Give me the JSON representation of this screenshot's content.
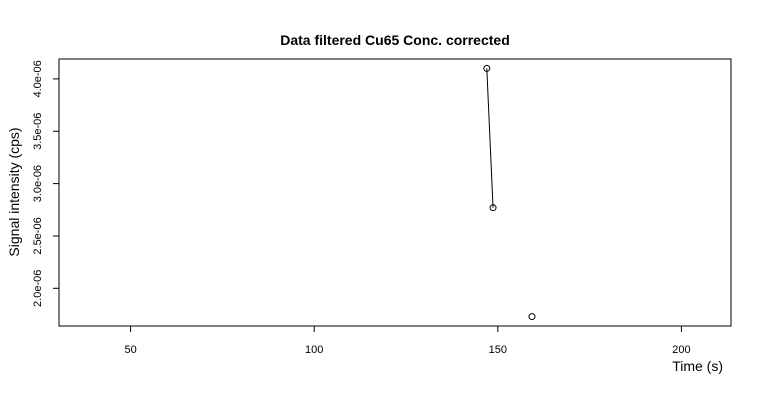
{
  "chart_data": {
    "type": "line",
    "title": "Data filtered Cu65 Conc. corrected",
    "xlabel": "Time (s)",
    "ylabel": "Signal intensity (cps)",
    "xlim": [
      30.5,
      213.5
    ],
    "ylim": [
      1.64e-06,
      4.19e-06
    ],
    "x_ticks": [
      50,
      100,
      150,
      200
    ],
    "x_tick_labels": [
      "50",
      "100",
      "150",
      "200"
    ],
    "y_ticks": [
      2e-06,
      2.5e-06,
      3e-06,
      3.5e-06,
      4e-06
    ],
    "y_tick_labels": [
      "2.0e-06",
      "2.5e-06",
      "3.0e-06",
      "3.5e-06",
      "4.0e-06"
    ],
    "grid": false,
    "series": [
      {
        "name": "Cu65",
        "points": [
          {
            "x": 147.0,
            "y": 4.1e-06
          },
          {
            "x": 148.7,
            "y": 2.77e-06
          },
          {
            "x": 159.3,
            "y": 1.73e-06
          }
        ],
        "line_segments": [
          [
            0,
            1
          ]
        ]
      }
    ]
  }
}
